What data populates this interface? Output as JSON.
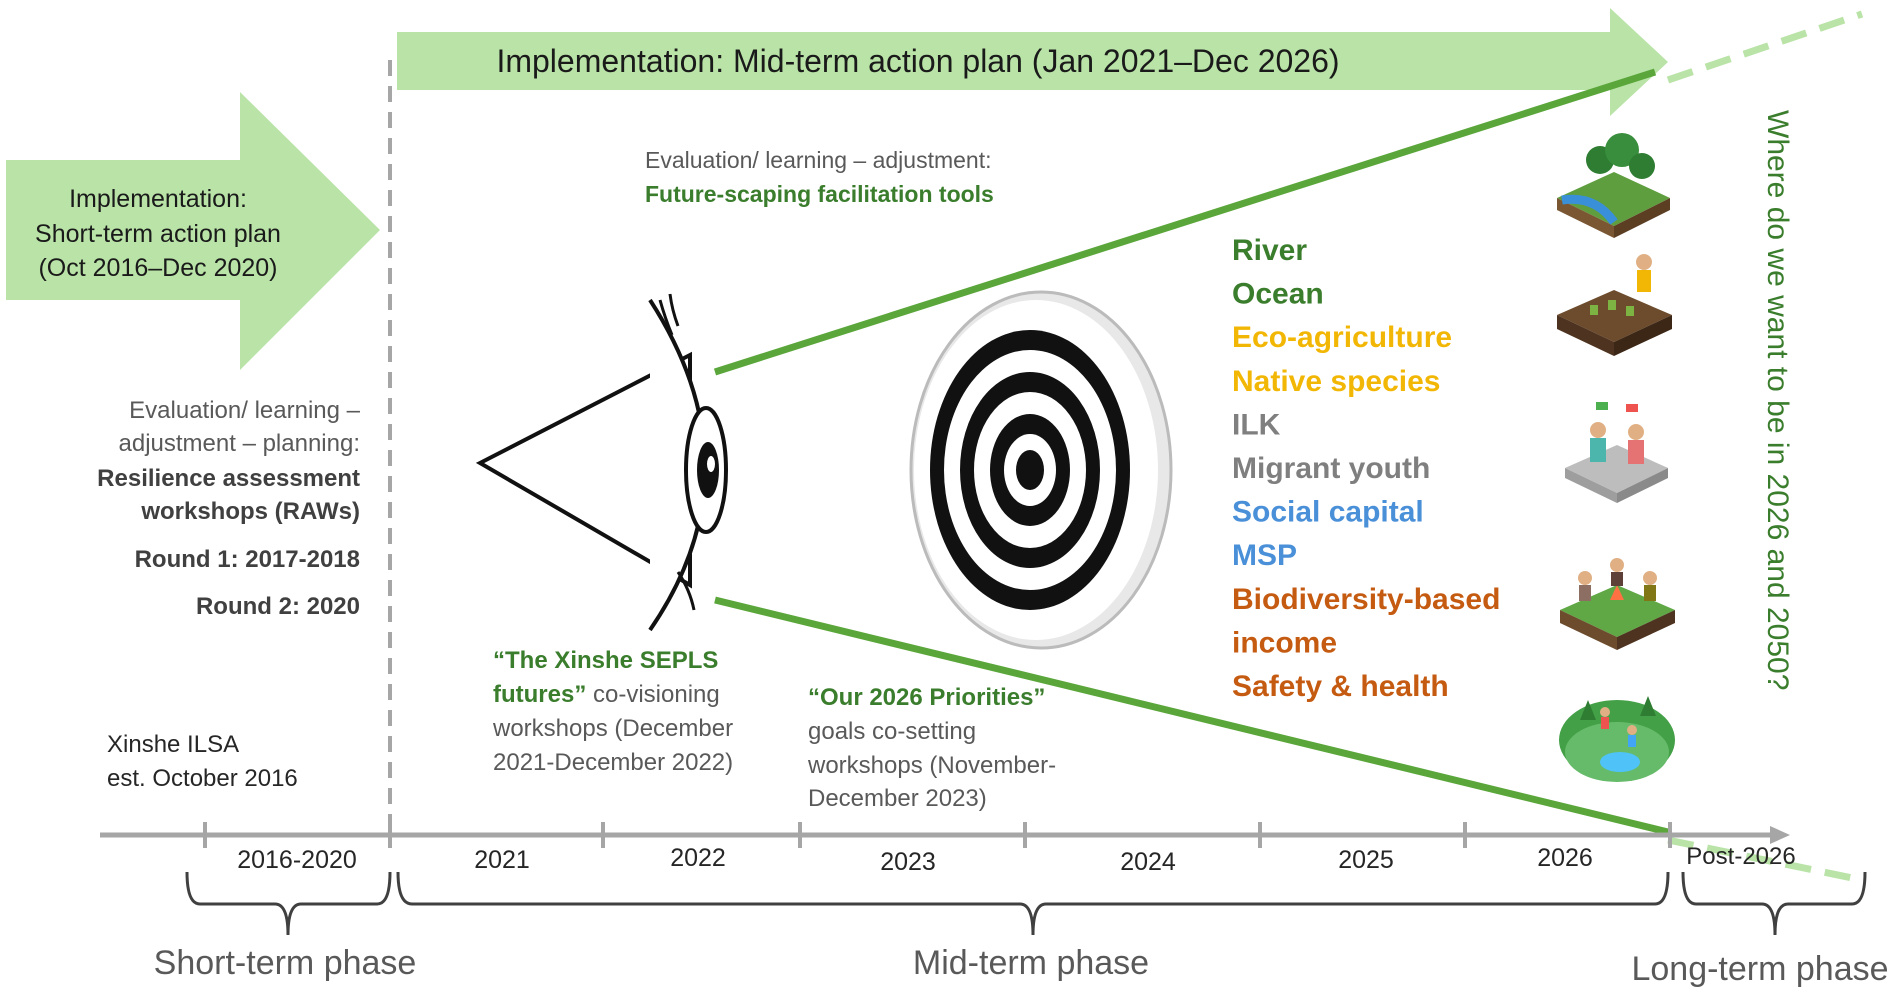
{
  "top_arrow": {
    "label": "Implementation: Mid-term action plan (Jan 2021–Dec 2026)"
  },
  "left_arrow": {
    "lines": [
      "Implementation:",
      "Short-term action plan",
      "(Oct 2016–Dec 2020)"
    ]
  },
  "left_text": {
    "lines": [
      "Evaluation/ learning –",
      "adjustment – planning:"
    ],
    "bold_lines": [
      "Resilience assessment",
      "workshops (RAWs)"
    ],
    "round1": "Round 1: 2017-2018",
    "round2": "Round 2: 2020"
  },
  "ilsa": {
    "lines": [
      "Xinshe ILSA",
      "est. October 2016"
    ]
  },
  "evaluation_top": {
    "line1": "Evaluation/ learning – adjustment:",
    "line2": "Future-scaping facilitation tools"
  },
  "workshop1": {
    "bold1": "“The Xinshe SEPLS",
    "bold2": "futures”",
    "rest2": " co-visioning",
    "lines": [
      "workshops (December",
      "2021-December 2022)"
    ]
  },
  "workshop2": {
    "bold1": "“Our 2026 Priorities”",
    "lines": [
      "goals co-setting",
      "workshops (November-",
      "December 2023)"
    ]
  },
  "priorities": [
    {
      "text": "River",
      "color": "#3a7d2c"
    },
    {
      "text": "Ocean",
      "color": "#3a7d2c"
    },
    {
      "text": "Eco-agriculture",
      "color": "#f2b705"
    },
    {
      "text": "Native species",
      "color": "#f2b705"
    },
    {
      "text": "ILK",
      "color": "#7f7f7f"
    },
    {
      "text": "Migrant youth",
      "color": "#7f7f7f"
    },
    {
      "text": "Social capital",
      "color": "#4a90d9"
    },
    {
      "text": "MSP",
      "color": "#4a90d9"
    },
    {
      "text": "Biodiversity-based",
      "color": "#c55a11"
    },
    {
      "text": "income",
      "color": "#c55a11"
    },
    {
      "text": "Safety & health",
      "color": "#c55a11"
    }
  ],
  "vertical_question": "Where do we want to be in 2026 and 2050?",
  "timeline": {
    "periods": [
      "2016-2020",
      "2021",
      "2022",
      "2023",
      "2024",
      "2025",
      "2026",
      "Post-2026"
    ]
  },
  "phases": {
    "short": "Short-term phase",
    "mid": "Mid-term phase",
    "long": "Long-term phase"
  },
  "colors": {
    "arrow_green": "#b9e3a7",
    "line_green": "#5aa63a",
    "dark_green": "#3a7d2c",
    "grey_text": "#595959",
    "axis_grey": "#a6a6a6"
  },
  "icons": [
    "river-landscape-icon",
    "farming-plot-icon",
    "community-meeting-icon",
    "campfire-gathering-icon",
    "park-recreation-icon"
  ]
}
